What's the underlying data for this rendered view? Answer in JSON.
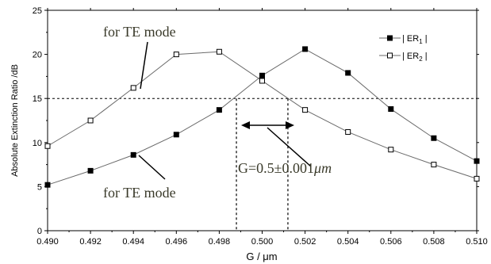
{
  "chart_data": {
    "type": "line",
    "xlabel": "G / μm",
    "ylabel": "Absolute Extinction Ratio /dB",
    "xlim": [
      0.49,
      0.51
    ],
    "ylim": [
      0,
      25
    ],
    "xticks": [
      "0.490",
      "0.492",
      "0.494",
      "0.496",
      "0.498",
      "0.500",
      "0.502",
      "0.504",
      "0.506",
      "0.508",
      "0.510"
    ],
    "yticks": [
      "0",
      "5",
      "10",
      "15",
      "20",
      "25"
    ],
    "grid": false,
    "legend_position": "top-right",
    "x": [
      0.49,
      0.492,
      0.494,
      0.496,
      0.498,
      0.5,
      0.502,
      0.504,
      0.506,
      0.508,
      0.51
    ],
    "series": [
      {
        "name": "| ER1 |",
        "legend_main": "| ER",
        "legend_sub": "1",
        "legend_tail": " |",
        "marker": "filled-square",
        "values": [
          5.2,
          6.8,
          8.6,
          10.9,
          13.7,
          17.6,
          20.6,
          17.9,
          13.8,
          10.5,
          7.9
        ]
      },
      {
        "name": "| ER2 |",
        "legend_main": "| ER",
        "legend_sub": "2",
        "legend_tail": " |",
        "marker": "open-square",
        "values": [
          9.6,
          12.5,
          16.2,
          20.0,
          20.3,
          17.0,
          13.7,
          11.2,
          9.2,
          7.5,
          5.9
        ]
      }
    ],
    "reference_lines": {
      "horizontal_y": 15,
      "vertical_x": [
        0.4988,
        0.5012
      ]
    },
    "annotations": {
      "te_top": "for TE mode",
      "te_bottom": "for TE mode",
      "tolerance_prefix": "G=0.5±0.001",
      "tolerance_unit": "μm"
    }
  },
  "colors": {
    "line": "#6a6a6a",
    "marker": "#000000",
    "reference": "#000000",
    "annotation_text": "#3a3a2a"
  }
}
